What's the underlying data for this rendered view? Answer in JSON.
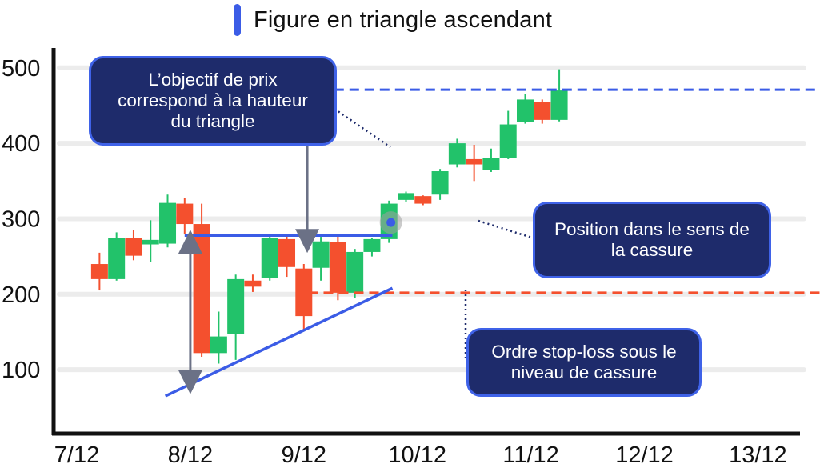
{
  "legend": {
    "label": "Figure en triangle ascendant",
    "color": "#3b5ce6"
  },
  "callouts": {
    "target": "L’objectif de prix\ncorrespond à la hauteur\ndu triangle",
    "position": "Position dans le sens de\nla cassure",
    "stoploss": "Ordre stop-loss sous le\nniveau de cassure"
  },
  "colors": {
    "up": "#22c26a",
    "down": "#f4502e",
    "resistance": "#3b5ce6",
    "target_line": "#3b5ce6",
    "stop_line": "#f4502e",
    "measure_arrow": "#6b7186",
    "callout_bg": "#1e2b6b",
    "callout_border": "#3f62e8"
  },
  "chart_data": {
    "type": "candlestick",
    "title": "Figure en triangle ascendant",
    "ylim": [
      40,
      520
    ],
    "yticks": [
      100,
      200,
      300,
      400,
      500
    ],
    "xticks": [
      "7/12",
      "8/12",
      "9/12",
      "10/12",
      "11/12",
      "12/12",
      "13/12"
    ],
    "grid": true,
    "candles": [
      {
        "x": 7.2,
        "open": 240,
        "close": 220,
        "high": 255,
        "low": 205
      },
      {
        "x": 7.35,
        "open": 220,
        "close": 275,
        "high": 282,
        "low": 218
      },
      {
        "x": 7.5,
        "open": 275,
        "close": 251,
        "high": 285,
        "low": 245
      },
      {
        "x": 7.65,
        "open": 266,
        "close": 272,
        "high": 298,
        "low": 243
      },
      {
        "x": 7.8,
        "open": 267,
        "close": 321,
        "high": 332,
        "low": 262
      },
      {
        "x": 7.95,
        "open": 320,
        "close": 293,
        "high": 328,
        "low": 280
      },
      {
        "x": 8.1,
        "open": 293,
        "close": 122,
        "high": 320,
        "low": 117
      },
      {
        "x": 8.25,
        "open": 122,
        "close": 144,
        "high": 177,
        "low": 108
      },
      {
        "x": 8.4,
        "open": 147,
        "close": 220,
        "high": 226,
        "low": 113
      },
      {
        "x": 8.55,
        "open": 218,
        "close": 210,
        "high": 226,
        "low": 203
      },
      {
        "x": 8.7,
        "open": 221,
        "close": 274,
        "high": 278,
        "low": 218
      },
      {
        "x": 8.85,
        "open": 273,
        "close": 236,
        "high": 278,
        "low": 223
      },
      {
        "x": 9.0,
        "open": 234,
        "close": 171,
        "high": 240,
        "low": 152
      },
      {
        "x": 9.15,
        "open": 235,
        "close": 270,
        "high": 276,
        "low": 218
      },
      {
        "x": 9.3,
        "open": 269,
        "close": 202,
        "high": 279,
        "low": 192
      },
      {
        "x": 9.45,
        "open": 202,
        "close": 256,
        "high": 260,
        "low": 195
      },
      {
        "x": 9.6,
        "open": 256,
        "close": 273,
        "high": 275,
        "low": 250
      },
      {
        "x": 9.75,
        "open": 273,
        "close": 320,
        "high": 324,
        "low": 268
      },
      {
        "x": 9.9,
        "open": 325,
        "close": 334,
        "high": 336,
        "low": 322
      },
      {
        "x": 10.05,
        "open": 330,
        "close": 320,
        "high": 331,
        "low": 318
      },
      {
        "x": 10.2,
        "open": 332,
        "close": 363,
        "high": 366,
        "low": 325
      },
      {
        "x": 10.35,
        "open": 372,
        "close": 400,
        "high": 406,
        "low": 368
      },
      {
        "x": 10.5,
        "open": 379,
        "close": 372,
        "high": 398,
        "low": 350
      },
      {
        "x": 10.65,
        "open": 365,
        "close": 381,
        "high": 393,
        "low": 362
      },
      {
        "x": 10.8,
        "open": 381,
        "close": 425,
        "high": 443,
        "low": 379
      },
      {
        "x": 10.95,
        "open": 428,
        "close": 458,
        "high": 465,
        "low": 426
      },
      {
        "x": 11.1,
        "open": 455,
        "close": 431,
        "high": 458,
        "low": 426
      },
      {
        "x": 11.25,
        "open": 431,
        "close": 470,
        "high": 498,
        "low": 429
      }
    ],
    "resistance": {
      "x0": 7.95,
      "x1": 9.78,
      "y": 278
    },
    "support_trendline": {
      "x0": 7.78,
      "y0": 65,
      "x1": 9.78,
      "y1": 208
    },
    "target_line": {
      "x0": 9.0,
      "y": 471
    },
    "stop_line": {
      "x0": 9.04,
      "y": 202
    },
    "measure_arrows": [
      {
        "x": 8.0,
        "y0": 277,
        "y1": 76
      },
      {
        "x": 9.03,
        "y0": 278,
        "y1": 467
      }
    ],
    "entry_point": {
      "x": 9.76,
      "y": 295
    }
  }
}
